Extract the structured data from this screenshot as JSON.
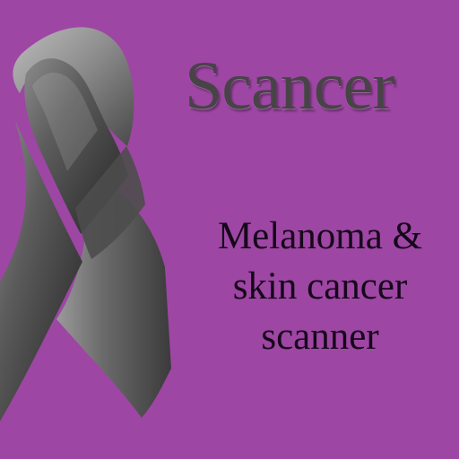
{
  "app": {
    "title": "Scancer",
    "tagline_lines": [
      "Melanoma &",
      "skin cancer",
      "scanner"
    ]
  },
  "colors": {
    "background": "#9e46a4",
    "title_text": "#474346",
    "tagline_text": "#16081a",
    "ribbon_dark": "#2f2f2f",
    "ribbon_mid": "#666666",
    "ribbon_light": "#a8a8a8"
  },
  "icons": {
    "ribbon": "awareness-ribbon-icon"
  }
}
